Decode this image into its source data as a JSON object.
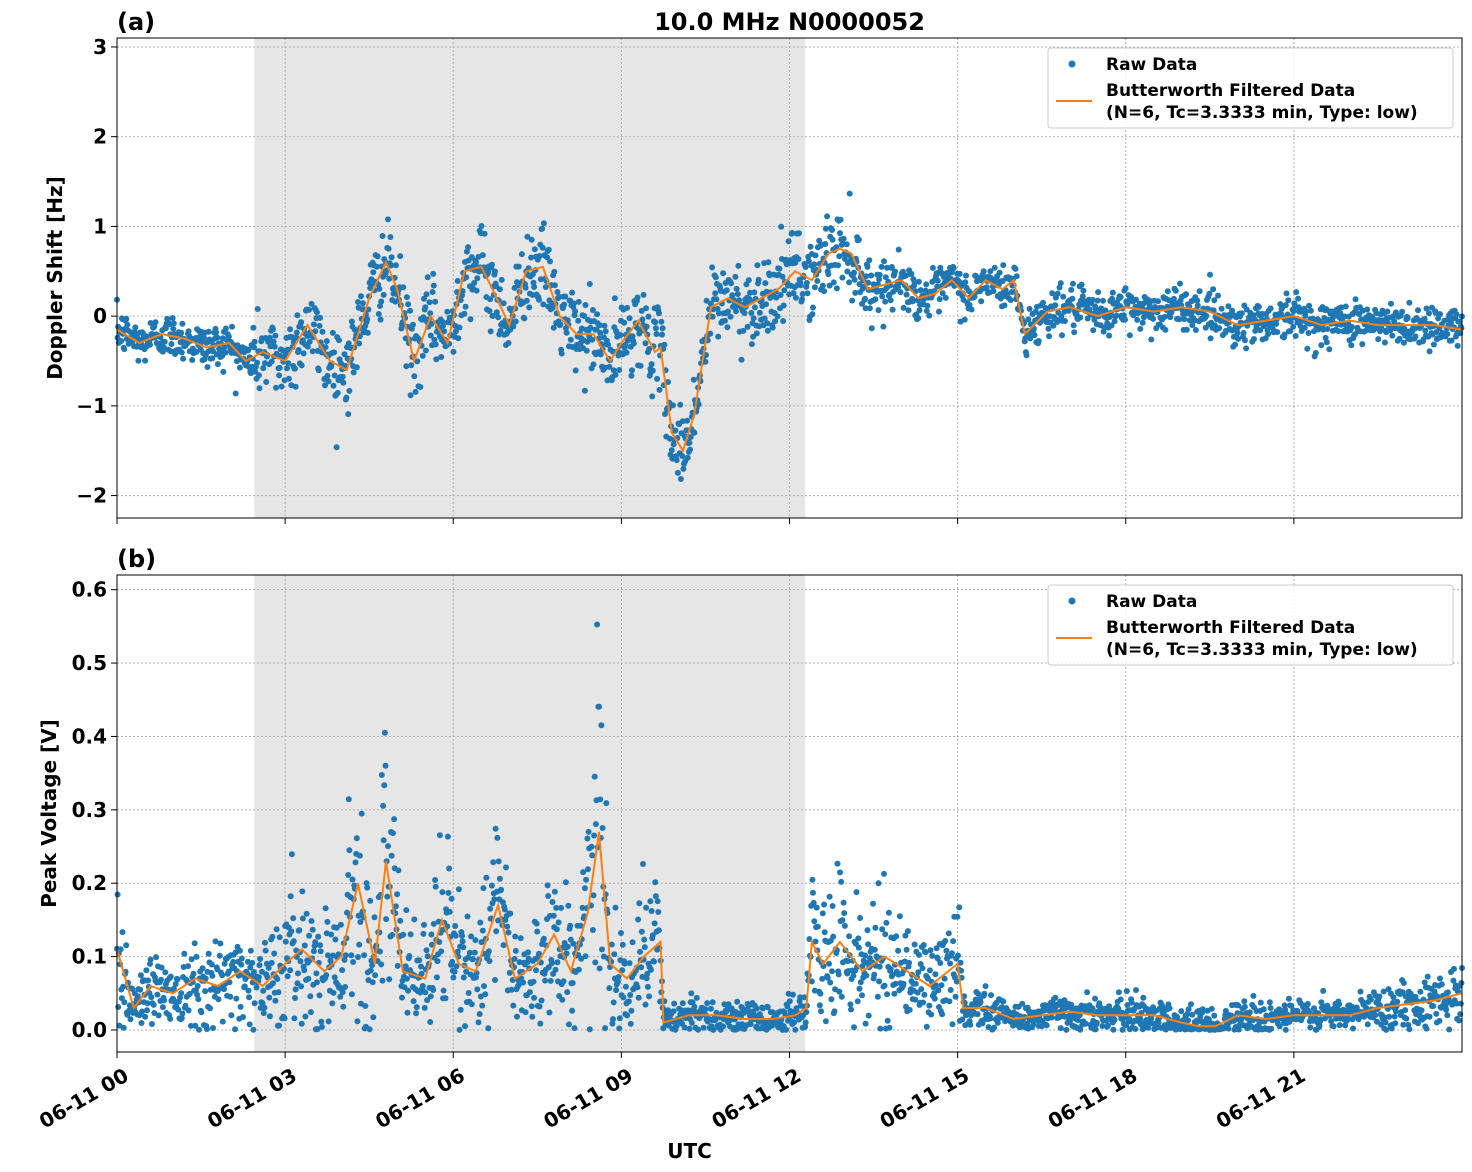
{
  "chart_data": {
    "type": "scatter",
    "title": "10.0 MHz N0000052",
    "xlabel": "UTC",
    "x_tick_labels": [
      "06-11 00",
      "06-11 03",
      "06-11 06",
      "06-11 09",
      "06-11 12",
      "06-11 15",
      "06-11 18",
      "06-11 21"
    ],
    "x_tick_hours": [
      0,
      3,
      6,
      9,
      12,
      15,
      18,
      21
    ],
    "xlim_hours": [
      0,
      24
    ],
    "shaded_region_hours": [
      2.45,
      12.28
    ],
    "grid": true,
    "legend_placement": "upper-right",
    "legend": {
      "raw_label": "Raw Data",
      "filtered_label_line1": "Butterworth Filtered Data",
      "filtered_label_line2": "(N=6, Tc=3.3333 min, Type: low)"
    },
    "colors": {
      "raw": "#1f77b4",
      "filtered": "#ff7f0e",
      "shade": "#e6e6e6"
    },
    "panels": [
      {
        "panel_label": "(a)",
        "ylabel": "Doppler Shift [Hz]",
        "ylim": [
          -2.25,
          3.1
        ],
        "y_tick_values": [
          -2,
          -1,
          0,
          1,
          2,
          3
        ],
        "y_tick_labels": [
          "−2",
          "−1",
          "0",
          "1",
          "2",
          "3"
        ],
        "series": [
          {
            "name": "Butterworth Filtered Data",
            "x_hours": [
              0,
              0.4,
              0.8,
              1.2,
              1.6,
              2.0,
              2.3,
              2.6,
              3.0,
              3.4,
              3.8,
              4.1,
              4.5,
              4.8,
              5.0,
              5.3,
              5.6,
              5.9,
              6.2,
              6.5,
              6.7,
              7.0,
              7.3,
              7.6,
              7.9,
              8.2,
              8.5,
              8.8,
              9.0,
              9.3,
              9.6,
              9.7,
              9.9,
              10.1,
              10.3,
              10.6,
              10.9,
              11.2,
              11.5,
              11.8,
              12.1,
              12.4,
              12.7,
              12.9,
              13.1,
              13.4,
              13.7,
              14.0,
              14.3,
              14.6,
              14.9,
              15.2,
              15.5,
              15.8,
              16.0,
              16.2,
              16.6,
              17.0,
              17.5,
              18.0,
              18.5,
              19.0,
              19.5,
              20.0,
              20.5,
              21.0,
              21.5,
              22.0,
              22.5,
              23.0,
              23.5,
              24.0
            ],
            "y": [
              -0.15,
              -0.3,
              -0.2,
              -0.25,
              -0.35,
              -0.3,
              -0.5,
              -0.4,
              -0.5,
              -0.1,
              -0.5,
              -0.6,
              0.2,
              0.6,
              0.3,
              -0.5,
              0.0,
              -0.3,
              0.5,
              0.55,
              0.3,
              -0.1,
              0.5,
              0.55,
              0.0,
              -0.2,
              -0.2,
              -0.5,
              -0.3,
              -0.05,
              -0.4,
              -0.35,
              -1.3,
              -1.5,
              -1.1,
              0.1,
              0.2,
              0.1,
              0.2,
              0.3,
              0.5,
              0.4,
              0.7,
              0.75,
              0.7,
              0.3,
              0.35,
              0.4,
              0.2,
              0.25,
              0.4,
              0.2,
              0.4,
              0.3,
              0.4,
              -0.2,
              0.05,
              0.1,
              0.0,
              0.1,
              0.05,
              0.1,
              0.05,
              -0.1,
              -0.05,
              0.0,
              -0.1,
              -0.05,
              -0.1,
              -0.1,
              -0.1,
              -0.15
            ]
          }
        ]
      },
      {
        "panel_label": "(b)",
        "ylabel": "Peak Voltage [V]",
        "ylim": [
          -0.03,
          0.62
        ],
        "y_tick_values": [
          0.0,
          0.1,
          0.2,
          0.3,
          0.4,
          0.5,
          0.6
        ],
        "y_tick_labels": [
          "0.0",
          "0.1",
          "0.2",
          "0.3",
          "0.4",
          "0.5",
          "0.6"
        ],
        "series": [
          {
            "name": "Butterworth Filtered Data",
            "x_hours": [
              0,
              0.3,
              0.6,
              1.0,
              1.4,
              1.8,
              2.2,
              2.6,
              3.0,
              3.3,
              3.7,
              4.0,
              4.3,
              4.6,
              4.8,
              5.1,
              5.5,
              5.8,
              6.1,
              6.4,
              6.8,
              7.1,
              7.5,
              7.8,
              8.1,
              8.4,
              8.6,
              8.8,
              9.1,
              9.4,
              9.7,
              9.75,
              10.2,
              10.7,
              11.2,
              11.7,
              12.1,
              12.3,
              12.4,
              12.6,
              12.9,
              13.3,
              13.7,
              14.1,
              14.5,
              15.0,
              15.1,
              15.5,
              16.0,
              16.5,
              17.0,
              17.5,
              18.0,
              18.5,
              19.0,
              19.3,
              19.6,
              20.0,
              20.5,
              21.0,
              21.5,
              22.0,
              22.5,
              23.0,
              23.5,
              24.0
            ],
            "y": [
              0.11,
              0.03,
              0.06,
              0.05,
              0.07,
              0.06,
              0.08,
              0.06,
              0.09,
              0.11,
              0.08,
              0.1,
              0.2,
              0.09,
              0.23,
              0.08,
              0.07,
              0.15,
              0.09,
              0.08,
              0.17,
              0.07,
              0.09,
              0.13,
              0.08,
              0.16,
              0.27,
              0.09,
              0.07,
              0.1,
              0.12,
              0.01,
              0.02,
              0.02,
              0.015,
              0.015,
              0.02,
              0.03,
              0.12,
              0.09,
              0.12,
              0.08,
              0.1,
              0.08,
              0.06,
              0.09,
              0.03,
              0.03,
              0.015,
              0.02,
              0.025,
              0.02,
              0.02,
              0.02,
              0.01,
              0.005,
              0.005,
              0.02,
              0.015,
              0.02,
              0.02,
              0.02,
              0.03,
              0.035,
              0.04,
              0.05
            ]
          }
        ]
      }
    ]
  }
}
